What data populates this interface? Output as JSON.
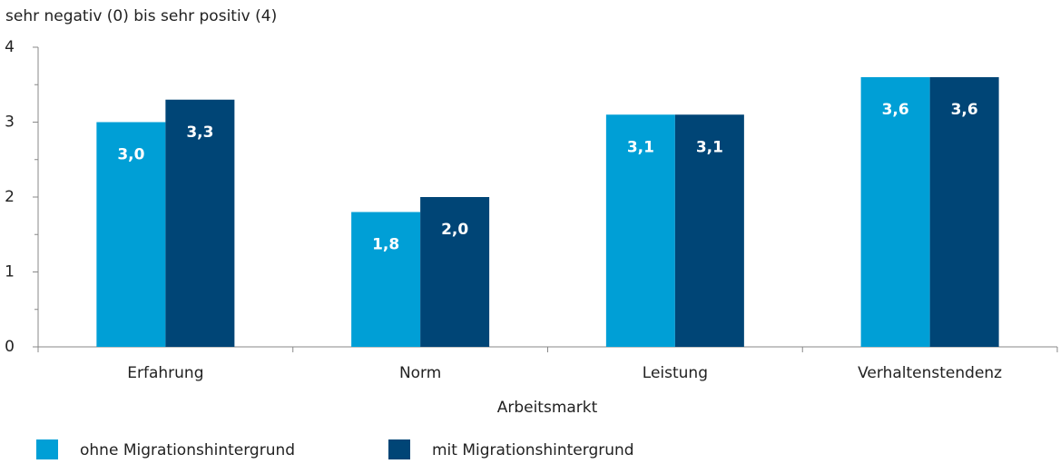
{
  "chart_data": {
    "type": "bar",
    "y_axis_label": "sehr negativ (0) bis sehr positiv (4)",
    "x_axis_label": "Arbeitsmarkt",
    "categories": [
      "Erfahrung",
      "Norm",
      "Leistung",
      "Verhaltenstendenz"
    ],
    "series": [
      {
        "name": "ohne Migrationshintergrund",
        "color": "#009fd6",
        "values": [
          3.0,
          1.8,
          3.1,
          3.6
        ],
        "value_labels": [
          "3,0",
          "1,8",
          "3,1",
          "3,6"
        ]
      },
      {
        "name": "mit Migrationshintergrund",
        "color": "#004576",
        "values": [
          3.3,
          2.0,
          3.1,
          3.6
        ],
        "value_labels": [
          "3,3",
          "2,0",
          "3,1",
          "3,6"
        ]
      }
    ],
    "ylim": [
      0,
      4
    ],
    "yticks": [
      0,
      1,
      2,
      3,
      4
    ],
    "yminorticks": [
      0.5,
      1.5,
      2.5,
      3.5
    ],
    "grid": false,
    "legend": "bottom"
  }
}
